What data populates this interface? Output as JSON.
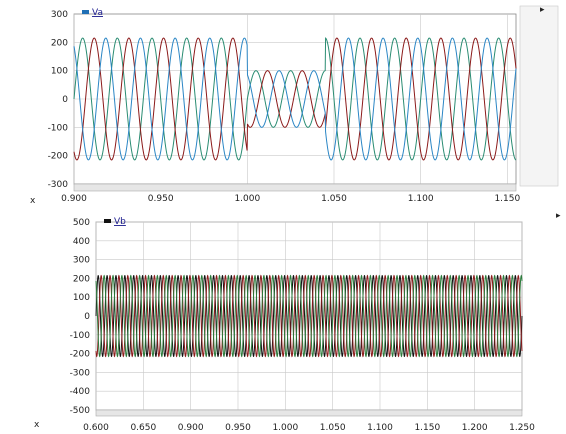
{
  "chart_data": [
    {
      "type": "line",
      "legend": "Va",
      "legend_color": "#1f6fb5",
      "x_ticks": [
        "0.900",
        "0.950",
        "1.000",
        "1.050",
        "1.100",
        "1.150"
      ],
      "y_ticks": [
        "300",
        "200",
        "100",
        "0",
        "-100",
        "-200",
        "-300"
      ],
      "xlim": [
        0.9,
        1.155
      ],
      "ylim": [
        -300,
        300
      ],
      "x_vlines": [
        0.9,
        1.0,
        1.05,
        1.1,
        1.15
      ],
      "y_hlines": [
        200,
        100,
        0,
        -100,
        -200
      ],
      "grid": true,
      "frequency_hz": 50,
      "sag_interval": [
        1.0,
        1.045
      ],
      "series": [
        {
          "color": "#2a8c72",
          "phase_deg": 0,
          "amplitude": 215,
          "sag_amplitude": 100
        },
        {
          "color": "#8b1a1a",
          "phase_deg": -120,
          "amplitude": 215,
          "sag_amplitude": 100
        },
        {
          "color": "#2b86c5",
          "phase_deg": 120,
          "amplitude": 215,
          "sag_amplitude": 100
        }
      ],
      "x_axis_marker": "x"
    },
    {
      "type": "line",
      "legend": "Vb",
      "legend_color": "#111111",
      "x_ticks": [
        "0.600",
        "0.650",
        "0.900",
        "0.950",
        "1.000",
        "1.050",
        "1.100",
        "1.150",
        "1.200",
        "1.250"
      ],
      "y_ticks": [
        "500",
        "400",
        "300",
        "200",
        "100",
        "0",
        "-100",
        "-200",
        "-300",
        "-400",
        "-500"
      ],
      "ylim": [
        -500,
        500
      ],
      "grid": true,
      "amplitude": 215,
      "series": [
        {
          "color": "#111111",
          "phase_deg": 0
        },
        {
          "color": "#8b1a1a",
          "phase_deg": -120
        },
        {
          "color": "#2a7a3a",
          "phase_deg": 120
        }
      ],
      "x_axis_marker": "x"
    }
  ]
}
